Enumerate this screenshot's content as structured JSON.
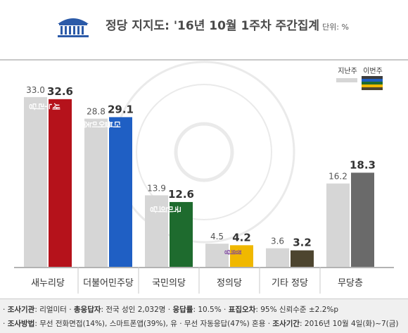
{
  "header": {
    "title": "정당 지지도: '16년 10월 1주차 주간집계",
    "unit": "단위: %"
  },
  "legend": {
    "previous": "지난주",
    "current": "이번주"
  },
  "colors": {
    "previous": "#d6d6d6",
    "new_nuri": "#b5121b",
    "minjoo": "#1f5fc4",
    "people": "#1e6b2e",
    "justice": "#f0b800",
    "other": "#4d452f",
    "none": "#6a6a6a"
  },
  "chart_data": {
    "type": "bar",
    "categories": [
      "새누리당",
      "더불어민주당",
      "국민의당",
      "정의당",
      "기타 정당",
      "무당층"
    ],
    "series": [
      {
        "name": "지난주",
        "values": [
          33.0,
          28.8,
          13.9,
          4.5,
          3.6,
          16.2
        ]
      },
      {
        "name": "이번주",
        "values": [
          32.6,
          29.1,
          12.6,
          4.2,
          3.2,
          18.3
        ]
      }
    ],
    "ylim": [
      0,
      36
    ],
    "value_labels": {
      "previous": [
        "33.0",
        "28.8",
        "13.9",
        "4.5",
        "3.6",
        "16.2"
      ],
      "current": [
        "32.6",
        "29.1",
        "12.6",
        "4.2",
        "3.2",
        "18.3"
      ]
    },
    "bar_logos": [
      "새누리당",
      "더불어민주당",
      "국민의당",
      "정의당"
    ],
    "legend_position": "top-right",
    "grid": false
  },
  "footer": {
    "line1": [
      {
        "label": "조사기관",
        "text": ": 리얼미터"
      },
      {
        "label": "총응답자",
        "text": ": 전국 성인 2,032명"
      },
      {
        "label": "응답률",
        "text": ": 10.5%"
      },
      {
        "label": "표집오차",
        "text": ": 95% 신뢰수준 ±2.2%p"
      }
    ],
    "line2": [
      {
        "label": "조사방법",
        "text": ": 무선 전화면접(14%), 스마트폰앱(39%), 유 · 무선 자동응답(47%) 혼용"
      },
      {
        "label": "조사기간",
        "text": ": 2016년 10월 4일(화)~7(금)"
      }
    ]
  }
}
